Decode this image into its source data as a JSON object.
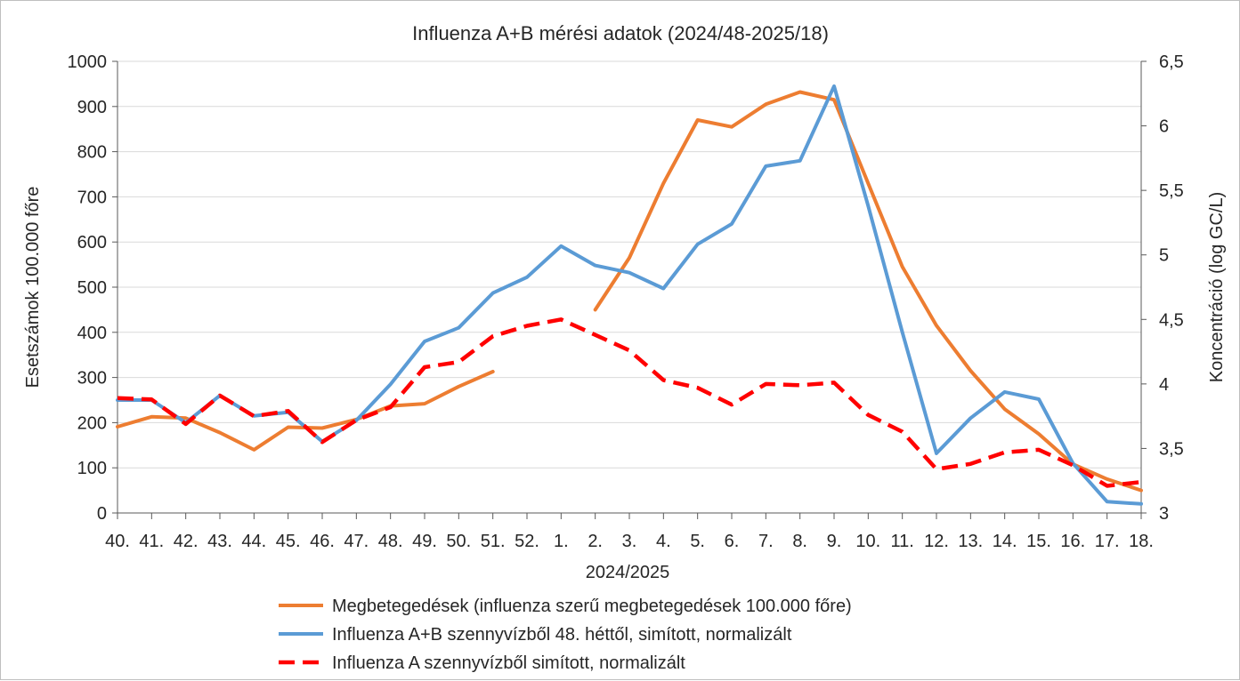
{
  "chart_data": {
    "type": "line",
    "title": "Influenza A+B mérési adatok (2024/48-2025/18)",
    "xlabel": "2024/2025",
    "ylabel_left": "Esetszámok 100.000 főre",
    "ylabel_right": "Koncentráció (log GC/L)",
    "categories": [
      "40.",
      "41.",
      "42.",
      "43.",
      "44.",
      "45.",
      "46.",
      "47.",
      "48.",
      "49.",
      "50.",
      "51.",
      "52.",
      "1.",
      "2.",
      "3.",
      "4.",
      "5.",
      "6.",
      "7.",
      "8.",
      "9.",
      "10.",
      "11.",
      "12.",
      "13.",
      "14.",
      "15.",
      "16.",
      "17.",
      "18."
    ],
    "ylim_left": [
      0,
      1000
    ],
    "yticks_left": [
      "0",
      "100",
      "200",
      "300",
      "400",
      "500",
      "600",
      "700",
      "800",
      "900",
      "1000"
    ],
    "ylim_right": [
      3,
      6.5
    ],
    "yticks_right": [
      "3",
      "3,5",
      "4",
      "4,5",
      "5",
      "5,5",
      "6",
      "6,5"
    ],
    "legend_position": "bottom",
    "grid": "horizontal",
    "series": [
      {
        "name": "Megbetegedések (influenza szerű megbetegedések 100.000 főre)",
        "axis": "left",
        "color": "#ED7D31",
        "style": "solid",
        "values": [
          191,
          213,
          210,
          178,
          140,
          190,
          188,
          207,
          237,
          242,
          280,
          313,
          null,
          null,
          450,
          565,
          730,
          870,
          855,
          905,
          932,
          915,
          730,
          545,
          415,
          315,
          230,
          175,
          108,
          75,
          50
        ]
      },
      {
        "name": "Influenza A+B szennyvízből 48. héttől, simított, normalizált",
        "axis": "left",
        "color": "#5B9BD5",
        "style": "solid",
        "values": [
          250,
          250,
          200,
          260,
          215,
          223,
          158,
          205,
          285,
          380,
          410,
          487,
          522,
          591,
          548,
          532,
          497,
          595,
          640,
          768,
          780,
          945,
          680,
          400,
          132,
          210,
          268,
          252,
          110,
          25,
          20
        ]
      },
      {
        "name": "Influenza A szennyvízből simított, normalizált",
        "axis": "right",
        "color": "#FF0000",
        "style": "dashed",
        "values": [
          3.89,
          3.88,
          3.69,
          3.91,
          3.75,
          3.79,
          3.55,
          3.72,
          3.82,
          4.13,
          4.17,
          4.37,
          4.45,
          4.5,
          4.38,
          4.26,
          4.03,
          3.97,
          3.84,
          4.0,
          3.99,
          4.01,
          3.76,
          3.63,
          3.34,
          3.38,
          3.47,
          3.49,
          3.37,
          3.21,
          3.24
        ]
      }
    ]
  }
}
